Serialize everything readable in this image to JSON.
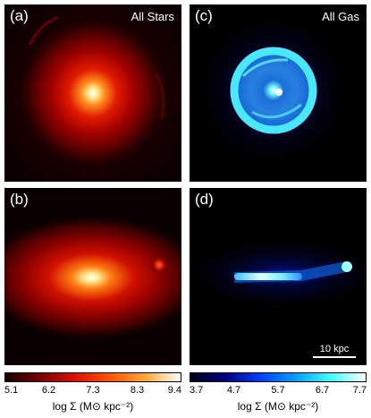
{
  "panels": {
    "a": {
      "label": "(a)",
      "title": "All Stars"
    },
    "b": {
      "label": "(b)",
      "title": ""
    },
    "c": {
      "label": "(c)",
      "title": "All Gas"
    },
    "d": {
      "label": "(d)",
      "title": "",
      "scale_bar": "10 kpc"
    }
  },
  "colorbars": {
    "stars": {
      "ticks": [
        "5.1",
        "6.2",
        "7.3",
        "8.3",
        "9.4"
      ],
      "label": "log Σ (M⊙ kpc⁻²)",
      "colors": [
        "#1a0000",
        "#7a0000",
        "#e01000",
        "#ff5500",
        "#ffaa33",
        "#ffffff"
      ]
    },
    "gas": {
      "ticks": [
        "3.7",
        "4.7",
        "5.7",
        "6.7",
        "7.7"
      ],
      "label": "log Σ (M⊙ kpc⁻²)",
      "colors": [
        "#00001a",
        "#000080",
        "#0040ff",
        "#00a0ff",
        "#40ffff",
        "#ffffff"
      ]
    }
  }
}
